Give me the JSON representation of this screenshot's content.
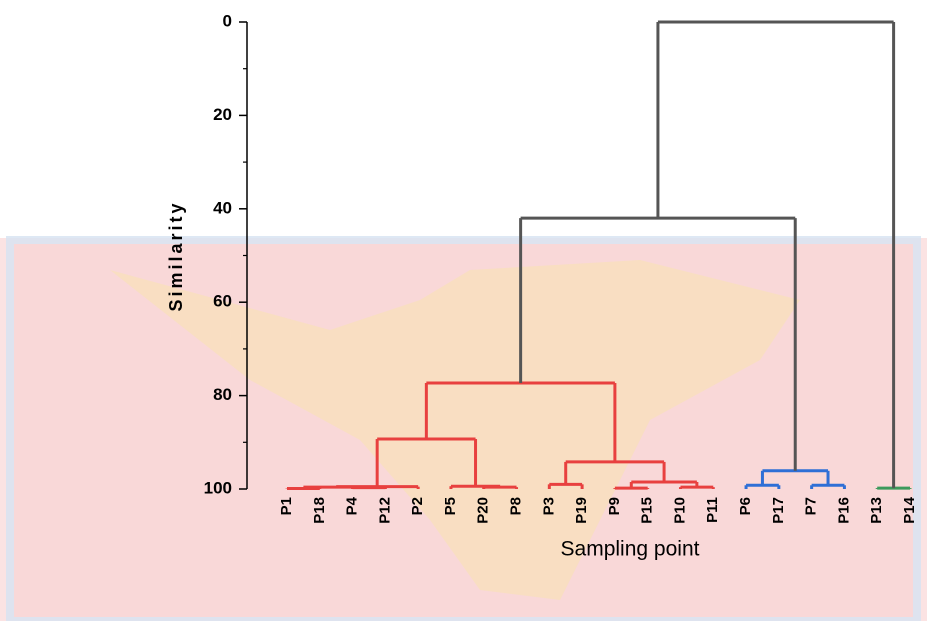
{
  "chart_data": {
    "type": "dendrogram",
    "ylabel": "Similarity",
    "xlabel": "Sampling point",
    "ylim": [
      0,
      100
    ],
    "yticks": [
      0,
      20,
      40,
      60,
      80,
      100
    ],
    "minor_yticks": [
      10,
      30,
      50,
      70,
      90
    ],
    "tree": {
      "height": 0,
      "color": "#555555",
      "children": [
        {
          "height": 42,
          "color": "#555555",
          "children": [
            {
              "height": 77.3,
              "color": "#e8403f",
              "children": [
                {
                  "height": 89.3,
                  "color": "#e8403f",
                  "children": [
                    {
                      "height": 99.5,
                      "color": "#e8403f",
                      "children": [
                        {
                          "height": 99.6,
                          "color": "#e8403f",
                          "children": [
                            {
                              "height": 99.9,
                              "color": "#e8403f",
                              "children": [
                                "P1",
                                "P18"
                              ]
                            },
                            {
                              "height": 99.7,
                              "color": "#e8403f",
                              "children": [
                                "P4",
                                "P12"
                              ]
                            }
                          ]
                        },
                        "P2"
                      ]
                    },
                    {
                      "height": 99.4,
                      "color": "#e8403f",
                      "children": [
                        "P5",
                        {
                          "height": 99.6,
                          "color": "#e8403f",
                          "children": [
                            "P20",
                            "P8"
                          ]
                        }
                      ]
                    }
                  ]
                },
                {
                  "height": 94.2,
                  "color": "#e8403f",
                  "children": [
                    {
                      "height": 99.0,
                      "color": "#e8403f",
                      "children": [
                        "P3",
                        "P19"
                      ]
                    },
                    {
                      "height": 98.5,
                      "color": "#e8403f",
                      "children": [
                        {
                          "height": 99.8,
                          "color": "#e8403f",
                          "children": [
                            "P9",
                            "P15"
                          ]
                        },
                        {
                          "height": 99.6,
                          "color": "#e8403f",
                          "children": [
                            "P10",
                            "P11"
                          ]
                        }
                      ]
                    }
                  ]
                }
              ]
            },
            {
              "height": 96.1,
              "color": "#2f6fd6",
              "children": [
                {
                  "height": 99.2,
                  "color": "#2f6fd6",
                  "children": [
                    "P6",
                    "P17"
                  ]
                },
                {
                  "height": 99.2,
                  "color": "#2f6fd6",
                  "children": [
                    "P7",
                    "P16"
                  ]
                }
              ]
            }
          ]
        },
        {
          "height": 99.8,
          "color": "#3c9a5c",
          "children": [
            "P13",
            "P14"
          ]
        }
      ]
    }
  }
}
